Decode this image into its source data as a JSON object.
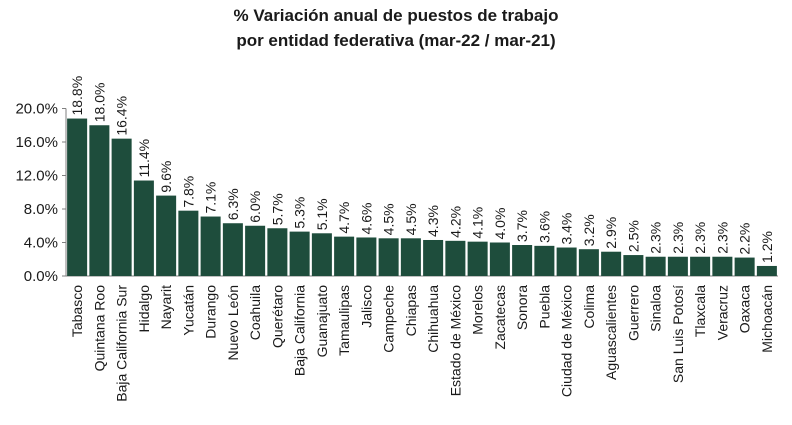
{
  "chart_data": {
    "type": "bar",
    "title_line1": "% Variación anual de puestos de trabajo",
    "title_line2": "por entidad federativa (mar-22 / mar-21)",
    "ylim": [
      0,
      20
    ],
    "yticks": [
      "0.0%",
      "4.0%",
      "8.0%",
      "12.0%",
      "16.0%",
      "20.0%"
    ],
    "ytick_values": [
      0,
      4,
      8,
      12,
      16,
      20
    ],
    "grid": false,
    "bar_color": "#1e4d3c",
    "categories": [
      "Tabasco",
      "Quintana Roo",
      "Baja California Sur",
      "Hidalgo",
      "Nayarit",
      "Yucatán",
      "Durango",
      "Nuevo León",
      "Coahuila",
      "Querétaro",
      "Baja California",
      "Guanajuato",
      "Tamaulipas",
      "Jalisco",
      "Campeche",
      "Chiapas",
      "Chihuahua",
      "Estado de México",
      "Morelos",
      "Zacatecas",
      "Sonora",
      "Puebla",
      "Ciudad de México",
      "Colima",
      "Aguascalientes",
      "Guerrero",
      "Sinaloa",
      "San Luis Potosí",
      "Tlaxcala",
      "Veracruz",
      "Oaxaca",
      "Michoacán"
    ],
    "values": [
      18.8,
      18.0,
      16.4,
      11.4,
      9.6,
      7.8,
      7.1,
      6.3,
      6.0,
      5.7,
      5.3,
      5.1,
      4.7,
      4.6,
      4.5,
      4.5,
      4.3,
      4.2,
      4.1,
      4.0,
      3.7,
      3.6,
      3.4,
      3.2,
      2.9,
      2.5,
      2.3,
      2.3,
      2.3,
      2.3,
      2.2,
      1.2
    ],
    "data_labels": [
      "18.8%",
      "18.0%",
      "16.4%",
      "11.4%",
      "9.6%",
      "7.8%",
      "7.1%",
      "6.3%",
      "6.0%",
      "5.7%",
      "5.3%",
      "5.1%",
      "4.7%",
      "4.6%",
      "4.5%",
      "4.5%",
      "4.3%",
      "4.2%",
      "4.1%",
      "4.0%",
      "3.7%",
      "3.6%",
      "3.4%",
      "3.2%",
      "2.9%",
      "2.5%",
      "2.3%",
      "2.3%",
      "2.3%",
      "2.3%",
      "2.2%",
      "1.2%"
    ]
  }
}
